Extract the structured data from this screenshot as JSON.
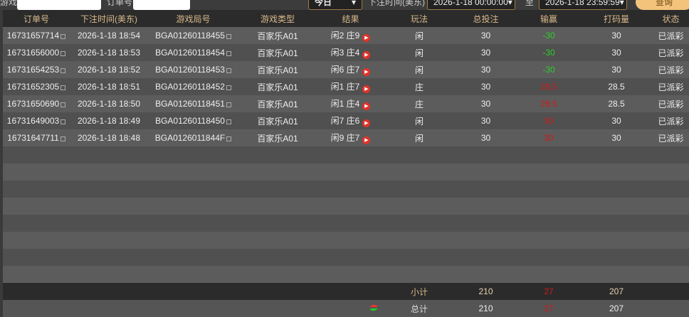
{
  "toolbar": {
    "round_label": "游戏局号",
    "round_value": "",
    "order_label": "订单号",
    "order_value": "",
    "period": "今日",
    "time_label": "下注时间(美东)",
    "start": "2026-1-18 00:00:00",
    "to": "至",
    "end": "2026-1-18 23:59:59",
    "query": "查询"
  },
  "headers": [
    "订单号",
    "下注时间(美东)",
    "游戏局号",
    "游戏类型",
    "结果",
    "玩法",
    "总投注",
    "输赢",
    "打码量",
    "状态"
  ],
  "rows": [
    [
      "16731657714",
      "2026-1-18 18:54",
      "BGA01260118455",
      "百家乐A01",
      "闲2 庄9",
      "闲",
      "30",
      "-30",
      "30",
      "已派彩"
    ],
    [
      "16731656000",
      "2026-1-18 18:53",
      "BGA01260118454",
      "百家乐A01",
      "闲3 庄4",
      "闲",
      "30",
      "-30",
      "30",
      "已派彩"
    ],
    [
      "16731654253",
      "2026-1-18 18:52",
      "BGA01260118453",
      "百家乐A01",
      "闲6 庄7",
      "闲",
      "30",
      "-30",
      "30",
      "已派彩"
    ],
    [
      "16731652305",
      "2026-1-18 18:51",
      "BGA01260118452",
      "百家乐A01",
      "闲1 庄7",
      "庄",
      "30",
      "28.5",
      "28.5",
      "已派彩"
    ],
    [
      "16731650690",
      "2026-1-18 18:50",
      "BGA01260118451",
      "百家乐A01",
      "闲1 庄4",
      "庄",
      "30",
      "28.5",
      "28.5",
      "已派彩"
    ],
    [
      "16731649003",
      "2026-1-18 18:49",
      "BGA01260118450",
      "百家乐A01",
      "闲7 庄6",
      "闲",
      "30",
      "30",
      "30",
      "已派彩"
    ],
    [
      "16731647711",
      "2026-1-18 18:48",
      "BGA0126011844F",
      "百家乐A01",
      "闲9 庄7",
      "闲",
      "30",
      "30",
      "30",
      "已派彩"
    ]
  ],
  "subtotal": {
    "label": "小计",
    "bet": "210",
    "winloss": "27",
    "valid": "207"
  },
  "total": {
    "label": "总计",
    "bet": "210",
    "winloss": "27",
    "valid": "207"
  },
  "colors": {
    "win": "#d01a1a",
    "lose": "#2ecc2e",
    "header_text": "#d8b98a",
    "button": "#f3c27b"
  }
}
